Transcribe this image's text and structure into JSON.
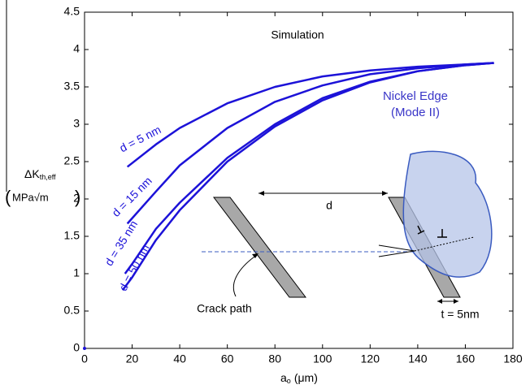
{
  "chart_data": {
    "type": "line",
    "annotations": {
      "simulation": "Simulation",
      "material": "Nickel Edge",
      "mode": "(Mode II)"
    },
    "ylabel": {
      "main": "ΔK",
      "sub": "th,eff",
      "units": "MPa√m"
    },
    "xlabel": {
      "main": "a",
      "sub": "o",
      "units": "(μm)"
    },
    "inset": {
      "spacing": "d",
      "crack": "Crack path",
      "thickness": "t = 5nm"
    },
    "xlim": [
      0,
      180
    ],
    "xticks": [
      0,
      20,
      40,
      60,
      80,
      100,
      120,
      140,
      160,
      180
    ],
    "ylim": [
      0,
      4.5
    ],
    "yticks": [
      0,
      0.5,
      1,
      1.5,
      2,
      2.5,
      3,
      3.5,
      4,
      4.5
    ],
    "series": [
      {
        "name": "d = 5 nm",
        "color": "#1c12d8",
        "x": [
          18,
          30,
          40,
          60,
          80,
          100,
          120,
          140,
          160,
          172
        ],
        "values": [
          2.43,
          2.73,
          2.95,
          3.28,
          3.5,
          3.64,
          3.72,
          3.77,
          3.8,
          3.82
        ]
      },
      {
        "name": "d = 15 nm",
        "color": "#1c12d8",
        "x": [
          18,
          30,
          40,
          60,
          80,
          100,
          120,
          140,
          160,
          172
        ],
        "values": [
          1.67,
          2.1,
          2.45,
          2.95,
          3.3,
          3.52,
          3.67,
          3.75,
          3.8,
          3.82
        ]
      },
      {
        "name": "d = 35 nm",
        "color": "#1c12d8",
        "x": [
          17,
          20,
          30,
          40,
          60,
          80,
          100,
          120,
          140,
          160,
          172
        ],
        "values": [
          1.0,
          1.13,
          1.6,
          1.95,
          2.55,
          3.0,
          3.35,
          3.57,
          3.71,
          3.79,
          3.82
        ]
      },
      {
        "name": "d = 50 nm",
        "color": "#1c12d8",
        "x": [
          16,
          20,
          30,
          40,
          60,
          80,
          100,
          120,
          140,
          160,
          172
        ],
        "values": [
          0.78,
          0.95,
          1.45,
          1.85,
          2.5,
          2.97,
          3.32,
          3.56,
          3.71,
          3.79,
          3.82
        ]
      }
    ]
  }
}
